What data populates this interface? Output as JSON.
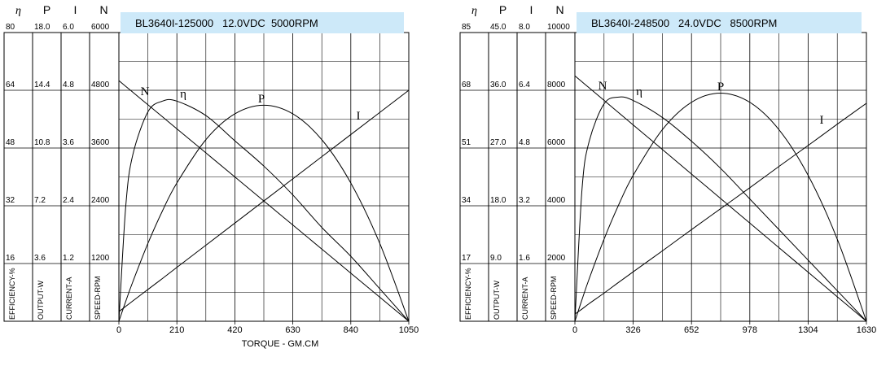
{
  "chart_data": [
    {
      "type": "line",
      "title": "BL3640I-125000   12.0VDC  5000RPM",
      "xlabel": "TORQUE - GM.CM",
      "x": [
        0,
        25,
        50,
        105,
        158,
        210,
        315,
        420,
        525,
        630,
        735,
        840,
        945,
        1050
      ],
      "xlim": [
        0,
        1050
      ],
      "xticks": [
        0,
        210,
        420,
        630,
        840,
        1050
      ],
      "grid": true,
      "series": [
        {
          "name": "η",
          "axis_title": "EFFICIENCY-%",
          "color": "#000000",
          "ylim": [
            0,
            80
          ],
          "yticks": [
            16,
            32,
            48,
            64,
            80
          ],
          "values": [
            0,
            32,
            46,
            58,
            61,
            61,
            57,
            50,
            43,
            35,
            26,
            18,
            9,
            0
          ]
        },
        {
          "name": "P",
          "axis_title": "OUTPUT-W",
          "color": "#000000",
          "ylim": [
            0,
            18
          ],
          "yticks": [
            3.6,
            7.2,
            10.8,
            14.4,
            {
              "value": 18,
              "label": "18.0"
            }
          ],
          "values": [
            0,
            1.25,
            2.44,
            4.85,
            6.89,
            8.62,
            11.32,
            12.93,
            13.47,
            12.93,
            11.32,
            8.62,
            4.85,
            0
          ]
        },
        {
          "name": "I",
          "axis_title": "CURRENT-A",
          "color": "#000000",
          "ylim": [
            0,
            6
          ],
          "yticks": [
            1.2,
            2.4,
            3.6,
            4.8,
            {
              "value": 6,
              "label": "6.0"
            }
          ],
          "values": [
            0.2,
            0.31,
            0.42,
            0.66,
            0.89,
            1.12,
            1.58,
            2.04,
            2.5,
            2.96,
            3.42,
            3.88,
            4.34,
            4.8
          ]
        },
        {
          "name": "N",
          "axis_title": "SPEED-RPM",
          "color": "#000000",
          "ylim": [
            0,
            6000
          ],
          "yticks": [
            1200,
            2400,
            3600,
            4800,
            6000
          ],
          "values": [
            5000,
            4881,
            4762,
            4500,
            4248,
            4000,
            3500,
            3000,
            2500,
            2000,
            1500,
            1000,
            500,
            0
          ]
        }
      ]
    },
    {
      "type": "line",
      "title": "BL3640I-248500   24.0VDC   8500RPM",
      "x": [
        0,
        40,
        80,
        163,
        245,
        326,
        489,
        652,
        815,
        978,
        1141,
        1304,
        1467,
        1630
      ],
      "xlim": [
        0,
        1630
      ],
      "xticks": [
        0,
        326,
        652,
        978,
        1304,
        1630
      ],
      "grid": true,
      "series": [
        {
          "name": "η",
          "axis_title": "EFFICIENCY-%",
          "color": "#000000",
          "ylim": [
            0,
            85
          ],
          "yticks": [
            17,
            34,
            51,
            68,
            85
          ],
          "values": [
            0,
            39,
            53,
            64,
            66,
            65,
            60,
            53,
            45,
            36,
            27,
            18,
            9,
            0
          ]
        },
        {
          "name": "P",
          "axis_title": "OUTPUT-W",
          "color": "#000000",
          "ylim": [
            0,
            45
          ],
          "yticks": [
            {
              "value": 9,
              "label": "9.0"
            },
            {
              "value": 18,
              "label": "18.0"
            },
            {
              "value": 27,
              "label": "27.0"
            },
            {
              "value": 36,
              "label": "36.0"
            },
            {
              "value": 45,
              "label": "45.0"
            }
          ],
          "values": [
            0,
            3.4,
            6.64,
            12.8,
            18.16,
            22.75,
            29.86,
            34.13,
            35.55,
            34.13,
            29.86,
            22.75,
            12.8,
            0
          ]
        },
        {
          "name": "I",
          "axis_title": "CURRENT-A",
          "color": "#000000",
          "ylim": [
            0,
            8
          ],
          "yticks": [
            1.6,
            3.2,
            4.8,
            6.4,
            {
              "value": 8,
              "label": "8.0"
            }
          ],
          "values": [
            0.2,
            0.34,
            0.49,
            0.78,
            1.08,
            1.37,
            1.95,
            2.54,
            3.12,
            3.7,
            4.29,
            4.87,
            5.46,
            6.04
          ]
        },
        {
          "name": "N",
          "axis_title": "SPEED-RPM",
          "color": "#000000",
          "ylim": [
            0,
            10000
          ],
          "yticks": [
            2000,
            4000,
            6000,
            8000,
            10000
          ],
          "values": [
            8500,
            8291,
            8083,
            7650,
            7222,
            6800,
            5950,
            5100,
            4250,
            3400,
            2550,
            1700,
            850,
            0
          ]
        }
      ]
    }
  ]
}
